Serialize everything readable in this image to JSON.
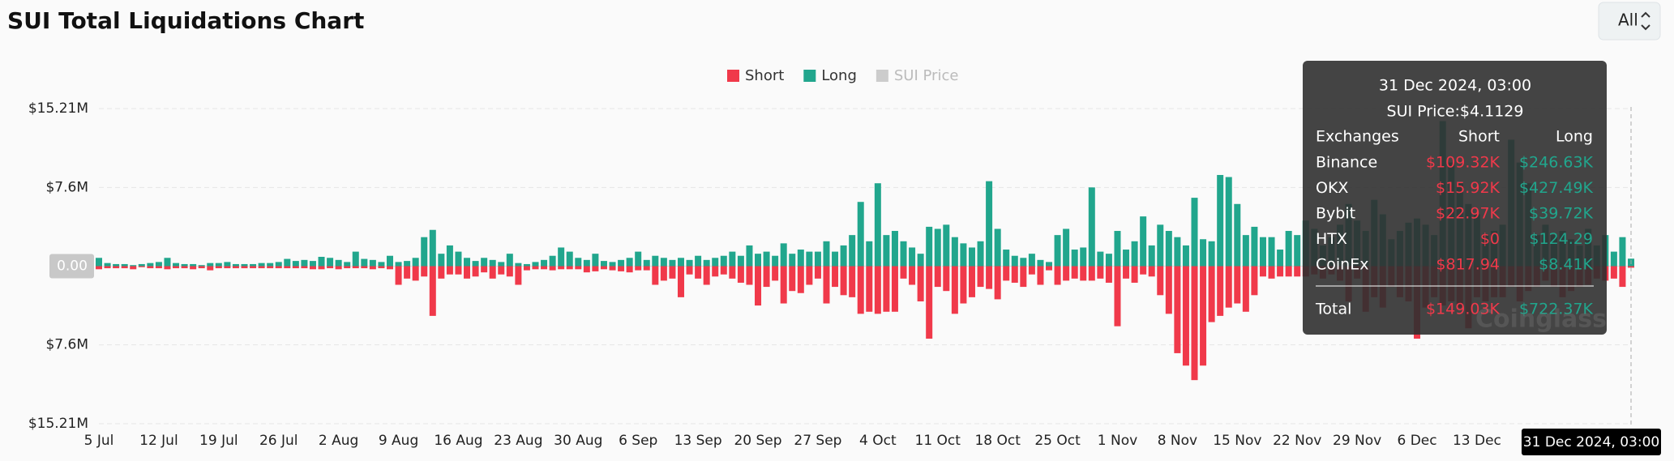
{
  "chart_data": {
    "type": "diverging_bar",
    "title": "SUI Total Liquidations Chart",
    "range_selector": "All",
    "watermark": "Coinglass",
    "crosshair_label": "31 Dec 2024, 03:00",
    "ylim": [
      -15210000,
      15210000
    ],
    "yticks": [
      {
        "value": -15210000,
        "label": "$15.21M"
      },
      {
        "value": -7600000,
        "label": "$7.6M"
      },
      {
        "value": 0,
        "label": "0.00"
      },
      {
        "value": 7600000,
        "label": "$7.6M"
      },
      {
        "value": 15210000,
        "label": "$15.21M"
      }
    ],
    "grid": true,
    "legend_position": "top",
    "legend_extra": {
      "name": "SUI Price",
      "color": "#cccccc"
    },
    "categories": [
      "5 Jul",
      null,
      null,
      null,
      null,
      null,
      null,
      "12 Jul",
      null,
      null,
      null,
      null,
      null,
      null,
      "19 Jul",
      null,
      null,
      null,
      null,
      null,
      null,
      "26 Jul",
      null,
      null,
      null,
      null,
      null,
      null,
      "2 Aug",
      null,
      null,
      null,
      null,
      null,
      null,
      "9 Aug",
      null,
      null,
      null,
      null,
      null,
      null,
      "16 Aug",
      null,
      null,
      null,
      null,
      null,
      null,
      "23 Aug",
      null,
      null,
      null,
      null,
      null,
      null,
      "30 Aug",
      null,
      null,
      null,
      null,
      null,
      null,
      "6 Sep",
      null,
      null,
      null,
      null,
      null,
      null,
      "13 Sep",
      null,
      null,
      null,
      null,
      null,
      null,
      "20 Sep",
      null,
      null,
      null,
      null,
      null,
      null,
      "27 Sep",
      null,
      null,
      null,
      null,
      null,
      null,
      "4 Oct",
      null,
      null,
      null,
      null,
      null,
      null,
      "11 Oct",
      null,
      null,
      null,
      null,
      null,
      null,
      "18 Oct",
      null,
      null,
      null,
      null,
      null,
      null,
      "25 Oct",
      null,
      null,
      null,
      null,
      null,
      null,
      "1 Nov",
      null,
      null,
      null,
      null,
      null,
      null,
      "8 Nov",
      null,
      null,
      null,
      null,
      null,
      null,
      "15 Nov",
      null,
      null,
      null,
      null,
      null,
      null,
      "22 Nov",
      null,
      null,
      null,
      null,
      null,
      null,
      "29 Nov",
      null,
      null,
      null,
      null,
      null,
      null,
      "6 Dec",
      null,
      null,
      null,
      null,
      null,
      null,
      "13 Dec",
      null,
      null,
      null,
      null,
      null,
      null,
      null,
      null,
      null,
      null,
      null,
      null,
      null,
      null,
      null,
      null,
      null,
      null
    ],
    "series": [
      {
        "name": "Short",
        "color": "#f0394a",
        "values": [
          -300000,
          -200000,
          -200000,
          -200000,
          -300000,
          -100000,
          -200000,
          -200000,
          -300000,
          -200000,
          -200000,
          -300000,
          -200000,
          -400000,
          -200000,
          -200000,
          -200000,
          -200000,
          -200000,
          -200000,
          -200000,
          -200000,
          -200000,
          -200000,
          -200000,
          -300000,
          -300000,
          -200000,
          -300000,
          -200000,
          -200000,
          -200000,
          -300000,
          -200000,
          -300000,
          -1800000,
          -1200000,
          -1400000,
          -1000000,
          -4800000,
          -1200000,
          -800000,
          -800000,
          -1200000,
          -1000000,
          -600000,
          -1200000,
          -800000,
          -1000000,
          -1800000,
          -400000,
          -300000,
          -300000,
          -400000,
          -300000,
          -300000,
          -300000,
          -600000,
          -500000,
          -300000,
          -400000,
          -500000,
          -600000,
          -400000,
          -400000,
          -1800000,
          -1400000,
          -1200000,
          -3000000,
          -800000,
          -1200000,
          -1800000,
          -1000000,
          -800000,
          -1200000,
          -1600000,
          -1800000,
          -3800000,
          -2000000,
          -1400000,
          -3600000,
          -2400000,
          -2600000,
          -1800000,
          -1200000,
          -3600000,
          -2000000,
          -2800000,
          -3000000,
          -4600000,
          -4400000,
          -4600000,
          -4400000,
          -4400000,
          -1200000,
          -1800000,
          -3400000,
          -7000000,
          -2000000,
          -2400000,
          -4600000,
          -3600000,
          -3000000,
          -2000000,
          -2200000,
          -3200000,
          -1400000,
          -1600000,
          -2000000,
          -800000,
          -1800000,
          -400000,
          -1800000,
          -1400000,
          -1200000,
          -1400000,
          -1400000,
          -1200000,
          -1600000,
          -5800000,
          -1200000,
          -1600000,
          -800000,
          -1000000,
          -2800000,
          -4600000,
          -8400000,
          -9600000,
          -11000000,
          -9600000,
          -5400000,
          -4800000,
          -4000000,
          -3600000,
          -4400000,
          -2800000,
          -1000000,
          -1200000,
          -1000000,
          -1000000,
          -1000000,
          -1000000,
          -800000,
          -1200000,
          -800000,
          -1400000,
          -3400000,
          -1200000,
          -4400000,
          -3000000,
          -4000000,
          -2000000,
          -3000000,
          -3400000,
          -7000000,
          -4000000,
          -3000000,
          -3800000,
          -3400000,
          -4000000,
          -6000000,
          -3000000,
          -3400000,
          -3000000,
          -3000000,
          -2000000,
          -3400000,
          -2400000,
          -2000000,
          -1400000,
          -2000000,
          -3000000,
          -2400000,
          -2000000,
          -1800000,
          -1200000,
          -1400000,
          -1200000,
          -2000000,
          -149030
        ]
      },
      {
        "name": "Long",
        "color": "#21a68d",
        "values": [
          800000,
          300000,
          200000,
          200000,
          100000,
          200000,
          300000,
          400000,
          800000,
          300000,
          200000,
          200000,
          100000,
          300000,
          300000,
          400000,
          200000,
          200000,
          200000,
          300000,
          300000,
          400000,
          700000,
          500000,
          600000,
          500000,
          900000,
          800000,
          600000,
          400000,
          1400000,
          700000,
          600000,
          400000,
          1000000,
          400000,
          500000,
          800000,
          2800000,
          3500000,
          1200000,
          2000000,
          1400000,
          800000,
          500000,
          800000,
          600000,
          400000,
          1200000,
          300000,
          200000,
          400000,
          600000,
          1000000,
          1800000,
          1400000,
          800000,
          600000,
          1200000,
          500000,
          400000,
          600000,
          800000,
          1400000,
          600000,
          1000000,
          800000,
          600000,
          800000,
          600000,
          1000000,
          600000,
          800000,
          1000000,
          1400000,
          1000000,
          2000000,
          1200000,
          1400000,
          1000000,
          2200000,
          1200000,
          1600000,
          1400000,
          1400000,
          2400000,
          1400000,
          2000000,
          3000000,
          6200000,
          2400000,
          8000000,
          3000000,
          3400000,
          2400000,
          1800000,
          1200000,
          3800000,
          3600000,
          4000000,
          2800000,
          2200000,
          1800000,
          2400000,
          8200000,
          3600000,
          1600000,
          1000000,
          800000,
          1200000,
          600000,
          400000,
          3000000,
          3600000,
          1600000,
          1800000,
          7600000,
          1400000,
          1200000,
          3400000,
          1600000,
          2400000,
          4800000,
          2000000,
          4000000,
          3400000,
          2800000,
          2000000,
          6600000,
          2600000,
          2400000,
          8800000,
          8600000,
          6000000,
          3000000,
          3800000,
          2800000,
          2800000,
          1600000,
          3400000,
          3000000,
          4400000,
          3600000,
          2000000,
          2800000,
          4000000,
          6000000,
          4400000,
          3400000,
          6400000,
          5000000,
          2600000,
          3400000,
          4200000,
          4600000,
          4000000,
          3000000,
          14000000,
          10000000,
          8000000,
          6000000,
          5000000,
          3000000,
          3400000,
          4000000,
          12200000,
          10000000,
          8000000,
          3000000,
          4000000,
          3000000,
          3400000,
          2600000,
          2000000,
          3600000,
          2000000,
          3000000,
          1400000,
          2800000,
          722370
        ]
      }
    ],
    "tooltip": {
      "title": "31 Dec 2024, 03:00",
      "price": "SUI Price:$4.1129",
      "headers": [
        "Exchanges",
        "Short",
        "Long"
      ],
      "rows": [
        [
          "Binance",
          "$109.32K",
          "$246.63K"
        ],
        [
          "OKX",
          "$15.92K",
          "$427.49K"
        ],
        [
          "Bybit",
          "$22.97K",
          "$39.72K"
        ],
        [
          "HTX",
          "$0",
          "$124.29"
        ],
        [
          "CoinEx",
          "$817.94",
          "$8.41K"
        ]
      ],
      "total": [
        "Total",
        "$149.03K",
        "$722.37K"
      ]
    }
  }
}
